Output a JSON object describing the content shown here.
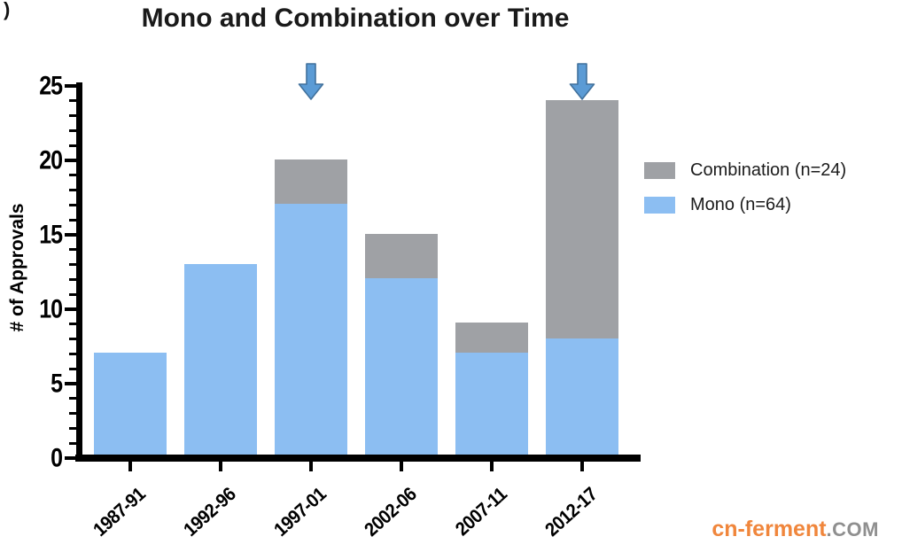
{
  "page": {
    "background": "#ffffff",
    "corner_mark": ")"
  },
  "header": {
    "title": "Mono and Combination over Time",
    "title_color": "#1a1a1a"
  },
  "chart_data": {
    "type": "bar",
    "stacked": true,
    "title": "Mono and Combination over Time",
    "xlabel": "",
    "ylabel": "# of Approvals",
    "categories": [
      "1987-91",
      "1992-96",
      "1997-01",
      "2002-06",
      "2007-11",
      "2012-17"
    ],
    "series": [
      {
        "name": "Mono (n=64)",
        "color": "#8CBEF2",
        "values": [
          7,
          13,
          17,
          12,
          7,
          8
        ]
      },
      {
        "name": "Combination (n=24)",
        "color": "#9FA1A5",
        "values": [
          0,
          0,
          3,
          3,
          2,
          16
        ]
      }
    ],
    "stack_totals": [
      7,
      13,
      20,
      15,
      9,
      24
    ],
    "ylim": [
      0,
      25
    ],
    "yticks": [
      0,
      5,
      10,
      15,
      20,
      25
    ],
    "minor_tick_interval": 1,
    "grid": false,
    "legend_position": "right-of-plot",
    "axis_color": "#000000",
    "annotations": [
      {
        "type": "down-arrow",
        "category": "1997-01",
        "category_index": 2
      },
      {
        "type": "down-arrow",
        "category": "2012-17",
        "category_index": 5
      }
    ],
    "annotation_style": {
      "fill": "#5B9BD5",
      "stroke": "#41719C"
    }
  },
  "legend": {
    "items": [
      {
        "label": "Combination (n=24)",
        "color": "#9FA1A5"
      },
      {
        "label": "Mono (n=64)",
        "color": "#8CBEF2"
      }
    ]
  },
  "watermark": {
    "brand": "cn-ferment",
    "suffix": ".COM",
    "brand_color": "#F0863C",
    "suffix_color": "#8F8F8F"
  }
}
